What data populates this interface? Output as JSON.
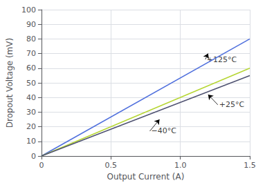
{
  "chart_data": {
    "type": "line",
    "xlabel": "Output Current (A)",
    "ylabel": "Dropout Voltage (mV)",
    "x": [
      0,
      1.5
    ],
    "series": [
      {
        "values": [
          0,
          80
        ]
      },
      {
        "values": [
          0,
          60
        ]
      },
      {
        "values": [
          0,
          55
        ]
      }
    ],
    "xlim": [
      0,
      1.5
    ],
    "ylim": [
      0,
      100
    ],
    "xticks": [
      0,
      0.5,
      {
        "value": 1.0,
        "label": "1.0"
      },
      1.5
    ],
    "yticks": [
      0,
      10,
      20,
      30,
      40,
      50,
      60,
      70,
      80,
      90,
      100
    ],
    "grid": true,
    "annotations": [
      {
        "text": "+125°C",
        "x": 1.18,
        "y": 66,
        "arrow_x": 1.2,
        "arrow_y": 70
      },
      {
        "text": "+25°C",
        "x": 1.27,
        "y": 35,
        "arrow_x": 1.2,
        "arrow_y": 42
      },
      {
        "text": "−40°C",
        "x": 0.78,
        "y": 17,
        "arrow_x": 0.85,
        "arrow_y": 25
      }
    ]
  }
}
